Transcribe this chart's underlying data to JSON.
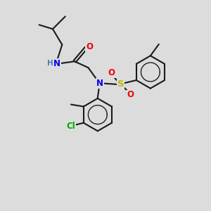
{
  "bg_color": "#dcdcdc",
  "bond_color": "#1a1a1a",
  "bond_width": 1.5,
  "atom_colors": {
    "N": "#0000ee",
    "O": "#ee0000",
    "S": "#bbbb00",
    "Cl": "#00aa00",
    "H": "#4682b4",
    "C": "#1a1a1a"
  },
  "font_size": 8.5
}
